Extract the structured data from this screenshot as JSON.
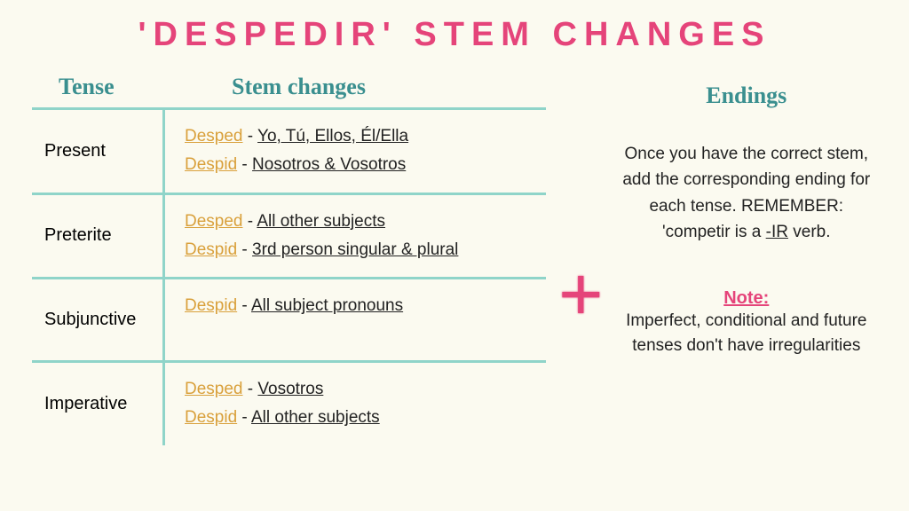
{
  "colors": {
    "pink": "#e5447a",
    "teal": "#3a8f8f",
    "gold": "#d9a03b",
    "border": "#8fd4c9",
    "text": "#222222"
  },
  "title": "'DESPEDIR' STEM CHANGES",
  "headers": {
    "tense": "Tense",
    "stem": "Stem changes"
  },
  "rows": [
    {
      "tense": "Present",
      "lines": [
        {
          "stem": "Desped",
          "subjects": "Yo, Tú, Ellos, Él/Ella"
        },
        {
          "stem": "Despid",
          "subjects": "Nosotros & Vosotros"
        }
      ]
    },
    {
      "tense": "Preterite",
      "lines": [
        {
          "stem": "Desped",
          "subjects": "All other subjects"
        },
        {
          "stem": "Despid",
          "subjects": "3rd person singular & plural "
        }
      ]
    },
    {
      "tense": "Subjunctive",
      "lines": [
        {
          "stem": "Despid",
          "subjects": "All subject pronouns"
        }
      ]
    },
    {
      "tense": "Imperative",
      "lines": [
        {
          "stem": "Desped",
          "subjects": "Vosotros"
        },
        {
          "stem": "Despid",
          "subjects": "All other subjects"
        }
      ]
    }
  ],
  "plus": "+",
  "endings": {
    "title": "Endings",
    "body_pre": "Once you have the correct stem, add the corresponding ending for each tense. REMEMBER: 'competir is a ",
    "ir": "-IR",
    "body_post": " verb."
  },
  "note": {
    "head": "Note:",
    "body": "Imperfect, conditional and future tenses don't have irregularities"
  }
}
